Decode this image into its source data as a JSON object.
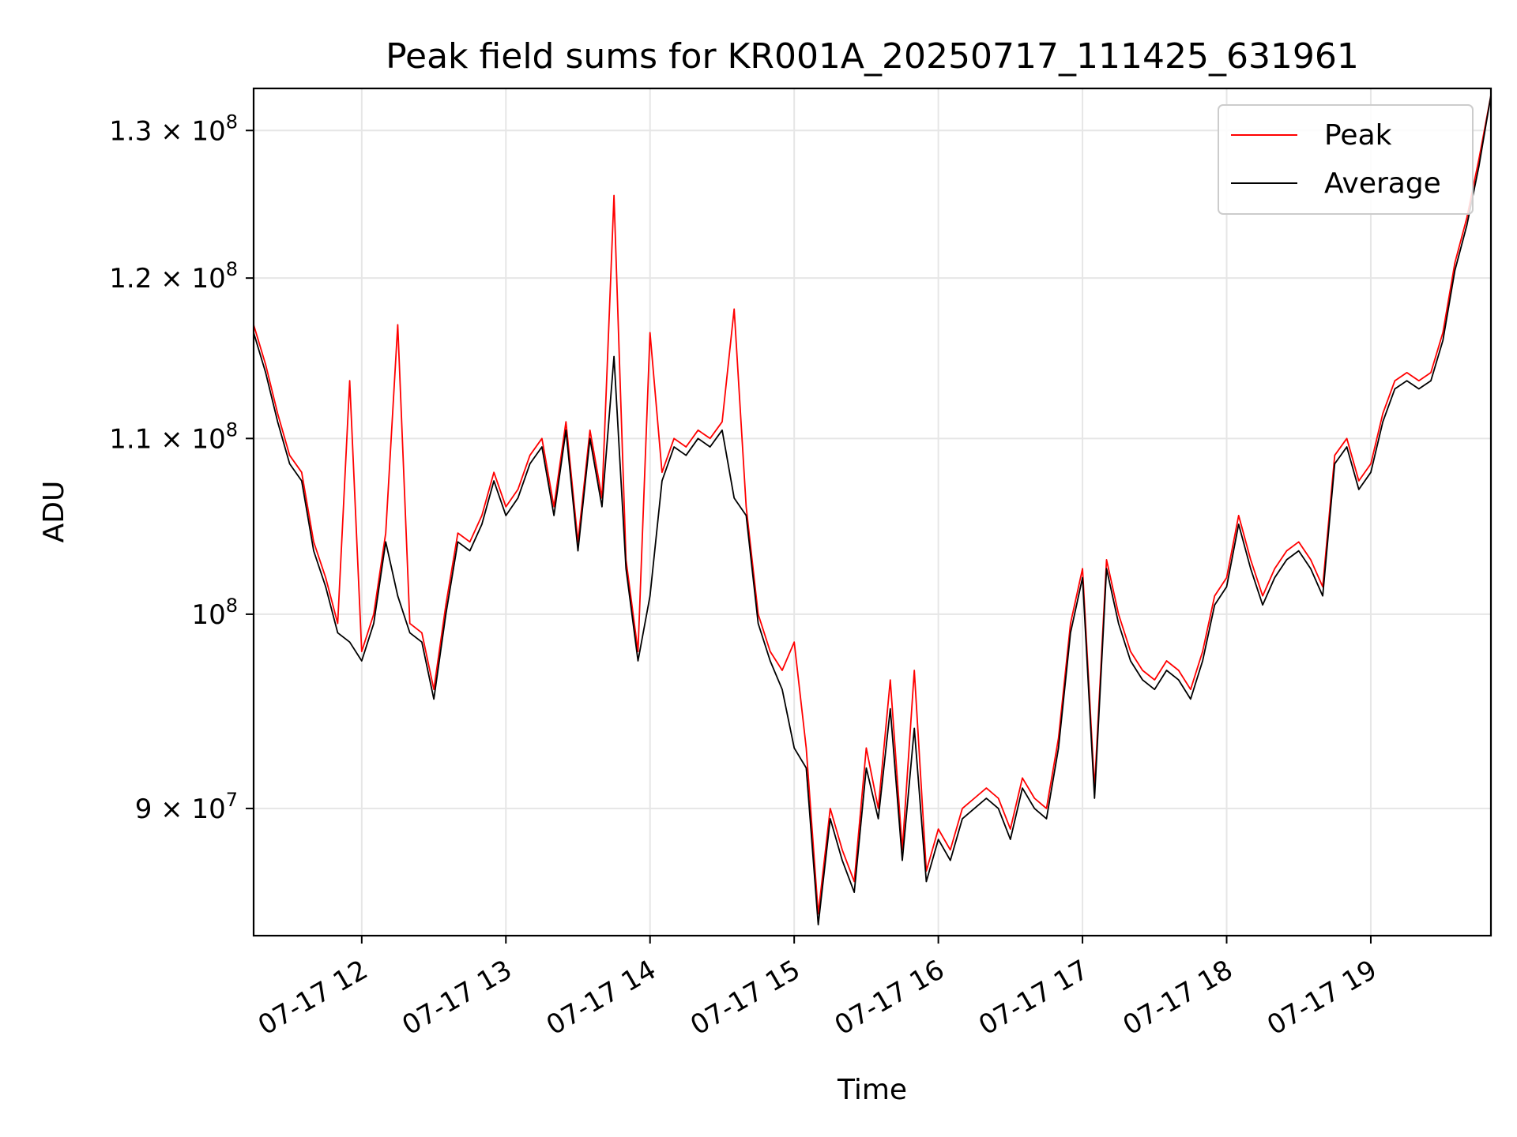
{
  "chart_data": {
    "type": "line",
    "title": "Peak field sums for KR001A_20250717_111425_631961",
    "xlabel": "Time",
    "ylabel": "ADU",
    "xlim": [
      "07-17 11:15",
      "07-17 19:50"
    ],
    "ylim": [
      84000000,
      133000000
    ],
    "y_scale": "log",
    "grid": true,
    "legend_position": "top-right",
    "x_ticks": [
      "07-17 12",
      "07-17 13",
      "07-17 14",
      "07-17 15",
      "07-17 16",
      "07-17 17",
      "07-17 18",
      "07-17 19"
    ],
    "y_ticks": [
      {
        "value": 90000000,
        "label_base": "9 × 10",
        "label_exp": "7"
      },
      {
        "value": 100000000,
        "label_base": "10",
        "label_exp": "8"
      },
      {
        "value": 110000000,
        "label_base": "1.1 × 10",
        "label_exp": "8"
      },
      {
        "value": 120000000,
        "label_base": "1.2 × 10",
        "label_exp": "8"
      },
      {
        "value": 130000000,
        "label_base": "1.3 × 10",
        "label_exp": "8"
      }
    ],
    "colors": {
      "peak": "#ff0000",
      "average": "#000000"
    },
    "series": [
      {
        "name": "Peak",
        "x": [
          "07-17 11:15",
          "07-17 11:20",
          "07-17 11:25",
          "07-17 11:30",
          "07-17 11:35",
          "07-17 11:40",
          "07-17 11:45",
          "07-17 11:50",
          "07-17 11:55",
          "07-17 12:00",
          "07-17 12:05",
          "07-17 12:10",
          "07-17 12:15",
          "07-17 12:20",
          "07-17 12:25",
          "07-17 12:30",
          "07-17 12:35",
          "07-17 12:40",
          "07-17 12:45",
          "07-17 12:50",
          "07-17 12:55",
          "07-17 13:00",
          "07-17 13:05",
          "07-17 13:10",
          "07-17 13:15",
          "07-17 13:20",
          "07-17 13:25",
          "07-17 13:30",
          "07-17 13:35",
          "07-17 13:40",
          "07-17 13:45",
          "07-17 13:50",
          "07-17 13:55",
          "07-17 14:00",
          "07-17 14:05",
          "07-17 14:10",
          "07-17 14:15",
          "07-17 14:20",
          "07-17 14:25",
          "07-17 14:30",
          "07-17 14:35",
          "07-17 14:40",
          "07-17 14:45",
          "07-17 14:50",
          "07-17 14:55",
          "07-17 15:00",
          "07-17 15:05",
          "07-17 15:10",
          "07-17 15:15",
          "07-17 15:20",
          "07-17 15:25",
          "07-17 15:30",
          "07-17 15:35",
          "07-17 15:40",
          "07-17 15:45",
          "07-17 15:50",
          "07-17 15:55",
          "07-17 16:00",
          "07-17 16:05",
          "07-17 16:10",
          "07-17 16:15",
          "07-17 16:20",
          "07-17 16:25",
          "07-17 16:30",
          "07-17 16:35",
          "07-17 16:40",
          "07-17 16:45",
          "07-17 16:50",
          "07-17 16:55",
          "07-17 17:00",
          "07-17 17:05",
          "07-17 17:10",
          "07-17 17:15",
          "07-17 17:20",
          "07-17 17:25",
          "07-17 17:30",
          "07-17 17:35",
          "07-17 17:40",
          "07-17 17:45",
          "07-17 17:50",
          "07-17 17:55",
          "07-17 18:00",
          "07-17 18:05",
          "07-17 18:10",
          "07-17 18:15",
          "07-17 18:20",
          "07-17 18:25",
          "07-17 18:30",
          "07-17 18:35",
          "07-17 18:40",
          "07-17 18:45",
          "07-17 18:50",
          "07-17 18:55",
          "07-17 19:00",
          "07-17 19:05",
          "07-17 19:10",
          "07-17 19:15",
          "07-17 19:20",
          "07-17 19:25",
          "07-17 19:30",
          "07-17 19:35",
          "07-17 19:40",
          "07-17 19:45",
          "07-17 19:50"
        ],
        "values": [
          117000000,
          114500000,
          111500000,
          109000000,
          108000000,
          104000000,
          102000000,
          99500000,
          113500000,
          98000000,
          100000000,
          104500000,
          117000000,
          99500000,
          99000000,
          96000000,
          100500000,
          104500000,
          104000000,
          105500000,
          108000000,
          106000000,
          107000000,
          109000000,
          110000000,
          106000000,
          111000000,
          104000000,
          110500000,
          106500000,
          125500000,
          103000000,
          98000000,
          116500000,
          108000000,
          110000000,
          109500000,
          110500000,
          110000000,
          111000000,
          118000000,
          106000000,
          100000000,
          98000000,
          97000000,
          98500000,
          93000000,
          85000000,
          90000000,
          88000000,
          86500000,
          93000000,
          90000000,
          96500000,
          88000000,
          97000000,
          87000000,
          89000000,
          88000000,
          90000000,
          90500000,
          91000000,
          90500000,
          89000000,
          91500000,
          90500000,
          90000000,
          93500000,
          99500000,
          102500000,
          91000000,
          103000000,
          100000000,
          98000000,
          97000000,
          96500000,
          97500000,
          97000000,
          96000000,
          98000000,
          101000000,
          102000000,
          105500000,
          103000000,
          101000000,
          102500000,
          103500000,
          104000000,
          103000000,
          101500000,
          109000000,
          110000000,
          107500000,
          108500000,
          111500000,
          113500000,
          114000000,
          113500000,
          114000000,
          116500000,
          121000000,
          124000000,
          128000000,
          132500000
        ]
      },
      {
        "name": "Average",
        "x": [
          "07-17 11:15",
          "07-17 11:20",
          "07-17 11:25",
          "07-17 11:30",
          "07-17 11:35",
          "07-17 11:40",
          "07-17 11:45",
          "07-17 11:50",
          "07-17 11:55",
          "07-17 12:00",
          "07-17 12:05",
          "07-17 12:10",
          "07-17 12:15",
          "07-17 12:20",
          "07-17 12:25",
          "07-17 12:30",
          "07-17 12:35",
          "07-17 12:40",
          "07-17 12:45",
          "07-17 12:50",
          "07-17 12:55",
          "07-17 13:00",
          "07-17 13:05",
          "07-17 13:10",
          "07-17 13:15",
          "07-17 13:20",
          "07-17 13:25",
          "07-17 13:30",
          "07-17 13:35",
          "07-17 13:40",
          "07-17 13:45",
          "07-17 13:50",
          "07-17 13:55",
          "07-17 14:00",
          "07-17 14:05",
          "07-17 14:10",
          "07-17 14:15",
          "07-17 14:20",
          "07-17 14:25",
          "07-17 14:30",
          "07-17 14:35",
          "07-17 14:40",
          "07-17 14:45",
          "07-17 14:50",
          "07-17 14:55",
          "07-17 15:00",
          "07-17 15:05",
          "07-17 15:10",
          "07-17 15:15",
          "07-17 15:20",
          "07-17 15:25",
          "07-17 15:30",
          "07-17 15:35",
          "07-17 15:40",
          "07-17 15:45",
          "07-17 15:50",
          "07-17 15:55",
          "07-17 16:00",
          "07-17 16:05",
          "07-17 16:10",
          "07-17 16:15",
          "07-17 16:20",
          "07-17 16:25",
          "07-17 16:30",
          "07-17 16:35",
          "07-17 16:40",
          "07-17 16:45",
          "07-17 16:50",
          "07-17 16:55",
          "07-17 17:00",
          "07-17 17:05",
          "07-17 17:10",
          "07-17 17:15",
          "07-17 17:20",
          "07-17 17:25",
          "07-17 17:30",
          "07-17 17:35",
          "07-17 17:40",
          "07-17 17:45",
          "07-17 17:50",
          "07-17 17:55",
          "07-17 18:00",
          "07-17 18:05",
          "07-17 18:10",
          "07-17 18:15",
          "07-17 18:20",
          "07-17 18:25",
          "07-17 18:30",
          "07-17 18:35",
          "07-17 18:40",
          "07-17 18:45",
          "07-17 18:50",
          "07-17 18:55",
          "07-17 19:00",
          "07-17 19:05",
          "07-17 19:10",
          "07-17 19:15",
          "07-17 19:20",
          "07-17 19:25",
          "07-17 19:30",
          "07-17 19:35",
          "07-17 19:40",
          "07-17 19:45",
          "07-17 19:50"
        ],
        "values": [
          116500000,
          114000000,
          111000000,
          108500000,
          107500000,
          103500000,
          101500000,
          99000000,
          98500000,
          97500000,
          99500000,
          104000000,
          101000000,
          99000000,
          98500000,
          95500000,
          100000000,
          104000000,
          103500000,
          105000000,
          107500000,
          105500000,
          106500000,
          108500000,
          109500000,
          105500000,
          110500000,
          103500000,
          110000000,
          106000000,
          115000000,
          102500000,
          97500000,
          101000000,
          107500000,
          109500000,
          109000000,
          110000000,
          109500000,
          110500000,
          106500000,
          105500000,
          99500000,
          97500000,
          96000000,
          93000000,
          92000000,
          84500000,
          89500000,
          87500000,
          86000000,
          92000000,
          89500000,
          95000000,
          87500000,
          94000000,
          86500000,
          88500000,
          87500000,
          89500000,
          90000000,
          90500000,
          90000000,
          88500000,
          91000000,
          90000000,
          89500000,
          93000000,
          99000000,
          102000000,
          90500000,
          102500000,
          99500000,
          97500000,
          96500000,
          96000000,
          97000000,
          96500000,
          95500000,
          97500000,
          100500000,
          101500000,
          105000000,
          102500000,
          100500000,
          102000000,
          103000000,
          103500000,
          102500000,
          101000000,
          108500000,
          109500000,
          107000000,
          108000000,
          111000000,
          113000000,
          113500000,
          113000000,
          113500000,
          116000000,
          120500000,
          123500000,
          127500000,
          132500000
        ]
      }
    ]
  }
}
